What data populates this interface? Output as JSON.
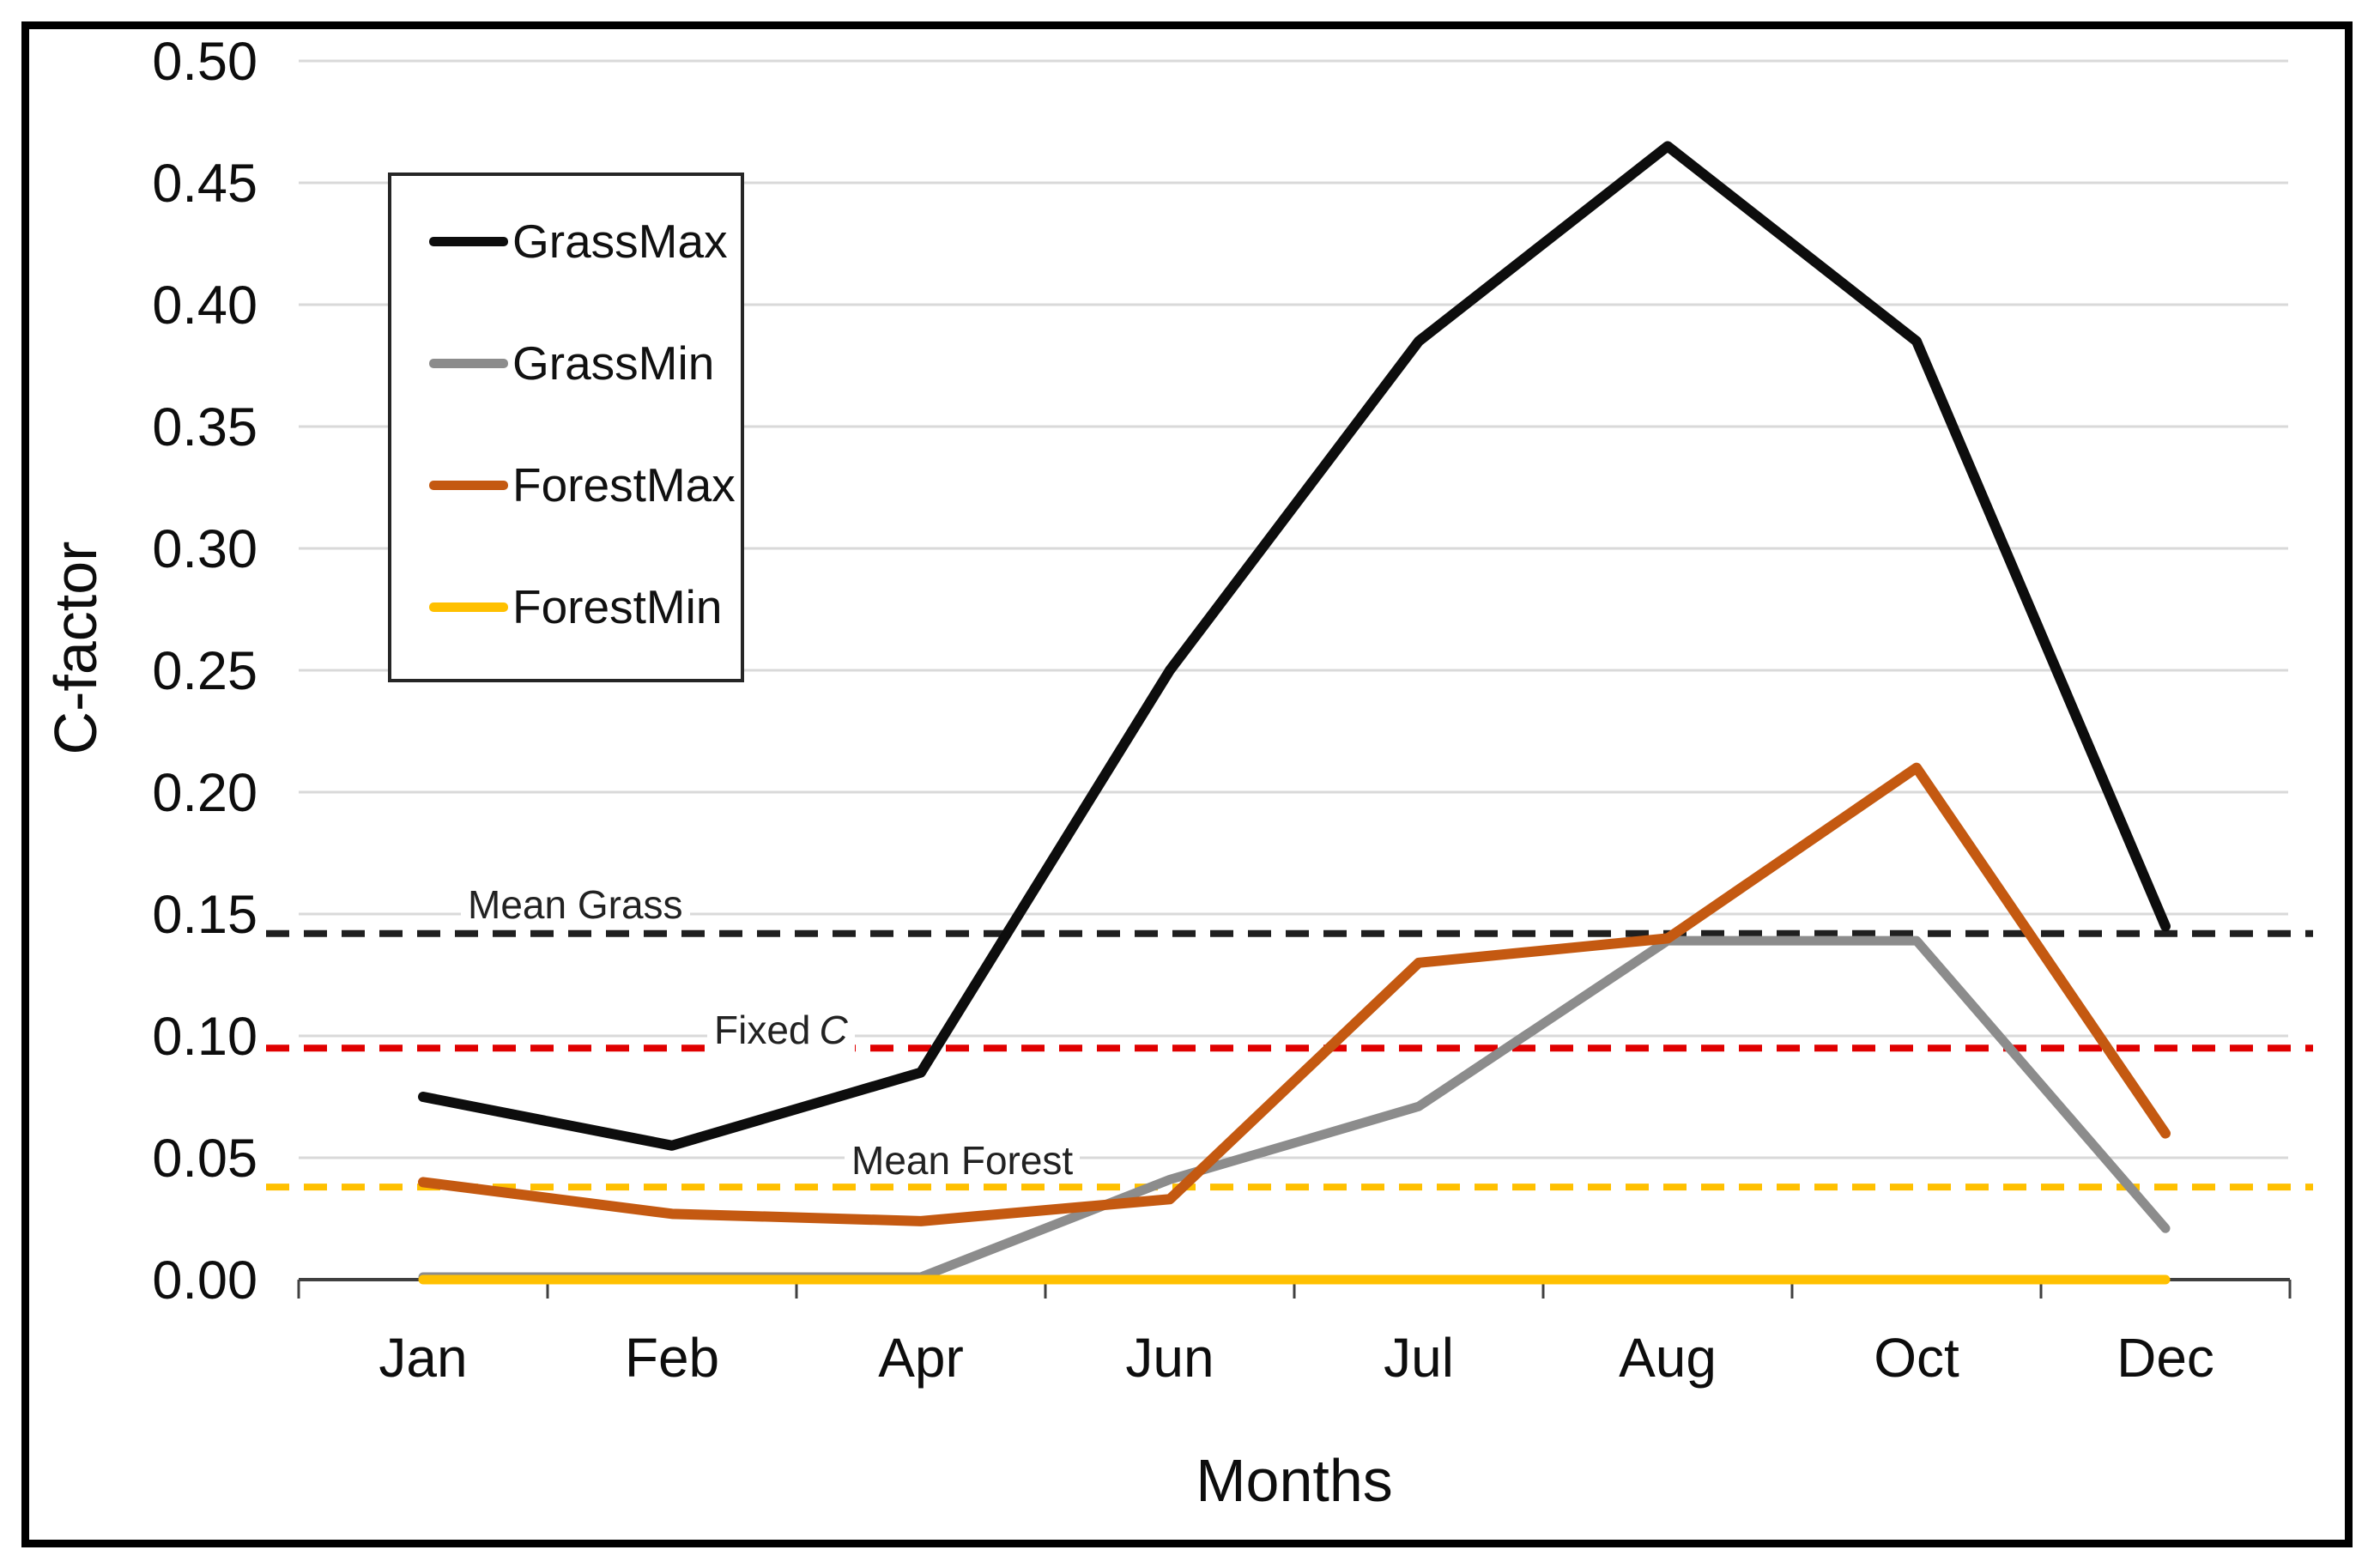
{
  "chart_data": {
    "type": "line",
    "categories": [
      "Jan",
      "Feb",
      "Apr",
      "Jun",
      "Jul",
      "Aug",
      "Oct",
      "Dec"
    ],
    "y_ticks": [
      "0.00",
      "0.05",
      "0.10",
      "0.15",
      "0.20",
      "0.25",
      "0.30",
      "0.35",
      "0.40",
      "0.45",
      "0.50"
    ],
    "ylim": [
      0,
      0.5
    ],
    "xlabel": "Months",
    "ylabel": "C-factor",
    "grid": true,
    "legend_position": "upper-left-box",
    "series": [
      {
        "name": "GrassMax",
        "color": "#0d0d0d",
        "style": "solid",
        "values": [
          0.075,
          0.055,
          0.085,
          0.25,
          0.385,
          0.465,
          0.385,
          0.145
        ]
      },
      {
        "name": "GrassMin",
        "color": "#8c8c8c",
        "style": "solid",
        "values": [
          0.0,
          0.0,
          0.0,
          0.04,
          0.07,
          0.138,
          0.138,
          0.02
        ]
      },
      {
        "name": "ForestMax",
        "color": "#c45911",
        "style": "solid",
        "values": [
          0.04,
          0.027,
          0.024,
          0.033,
          0.13,
          0.14,
          0.21,
          0.06
        ]
      },
      {
        "name": "ForestMin",
        "color": "#ffc000",
        "style": "solid",
        "values": [
          0.0,
          0.0,
          0.0,
          0.0,
          0.0,
          0.0,
          0.0,
          0.0
        ]
      }
    ],
    "reference_lines": [
      {
        "id": "mean-grass",
        "label": "Mean Grass",
        "value": 0.142,
        "color": "#1f1f1f",
        "style": "dashed"
      },
      {
        "id": "fixed-c",
        "label_prefix": "Fixed",
        "label_italic": "C",
        "value": 0.095,
        "color": "#e00000",
        "style": "dashed"
      },
      {
        "id": "mean-forest",
        "label": "Mean Forest",
        "value": 0.038,
        "color": "#ffc000",
        "style": "dashed"
      }
    ]
  },
  "colors": {
    "gridline": "#d9d9d9",
    "axis": "#404040",
    "tick_label": "#0d0d0d",
    "frame": "#000000"
  }
}
